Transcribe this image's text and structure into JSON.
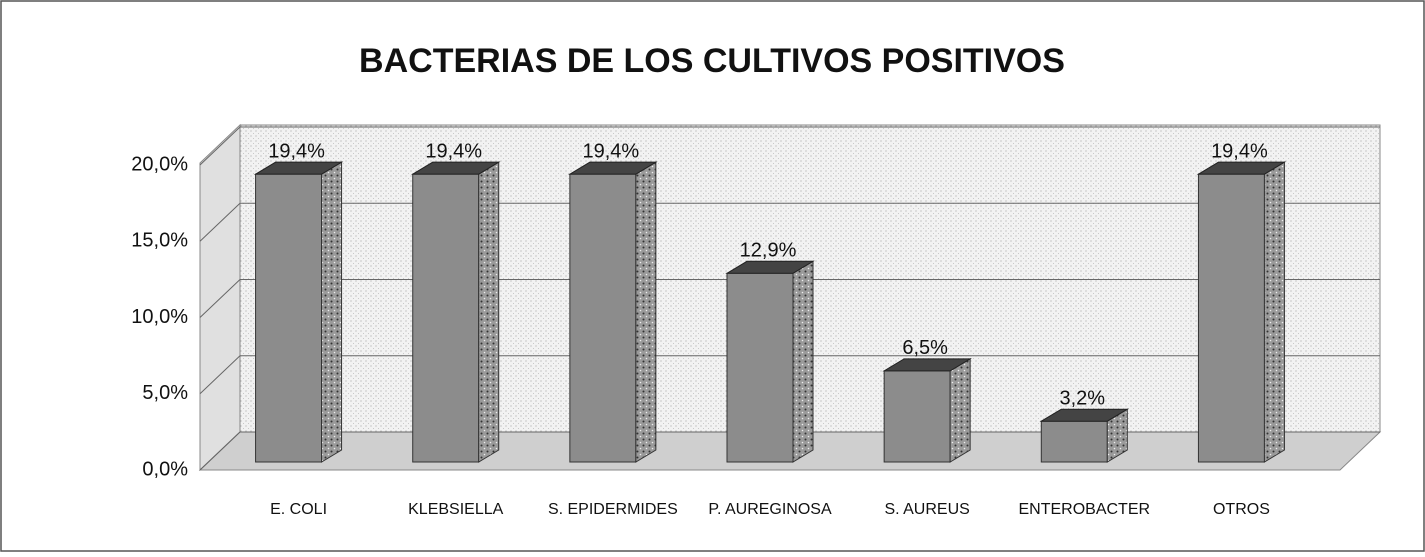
{
  "chart_data": {
    "type": "bar3d",
    "title": "BACTERIAS DE LOS CULTIVOS POSITIVOS",
    "categories": [
      "E. COLI",
      "KLEBSIELLA",
      "S. EPIDERMIDES",
      "P. AUREGINOSA",
      "S. AUREUS",
      "ENTEROBACTER",
      "OTROS"
    ],
    "values": [
      19.4,
      19.4,
      19.4,
      12.9,
      6.5,
      3.2,
      19.4
    ],
    "value_labels": [
      "19,4%",
      "19,4%",
      "19,4%",
      "12,9%",
      "6,5%",
      "3,2%",
      "19,4%"
    ],
    "color": "#8c8c8c",
    "ylim": [
      0,
      20
    ],
    "yticks": [
      {
        "value": 0,
        "label": "0,0%"
      },
      {
        "value": 5,
        "label": "5,0%"
      },
      {
        "value": 10,
        "label": "10,0%"
      },
      {
        "value": 15,
        "label": "15,0%"
      },
      {
        "value": 20,
        "label": "20,0%"
      }
    ],
    "grid": true
  }
}
